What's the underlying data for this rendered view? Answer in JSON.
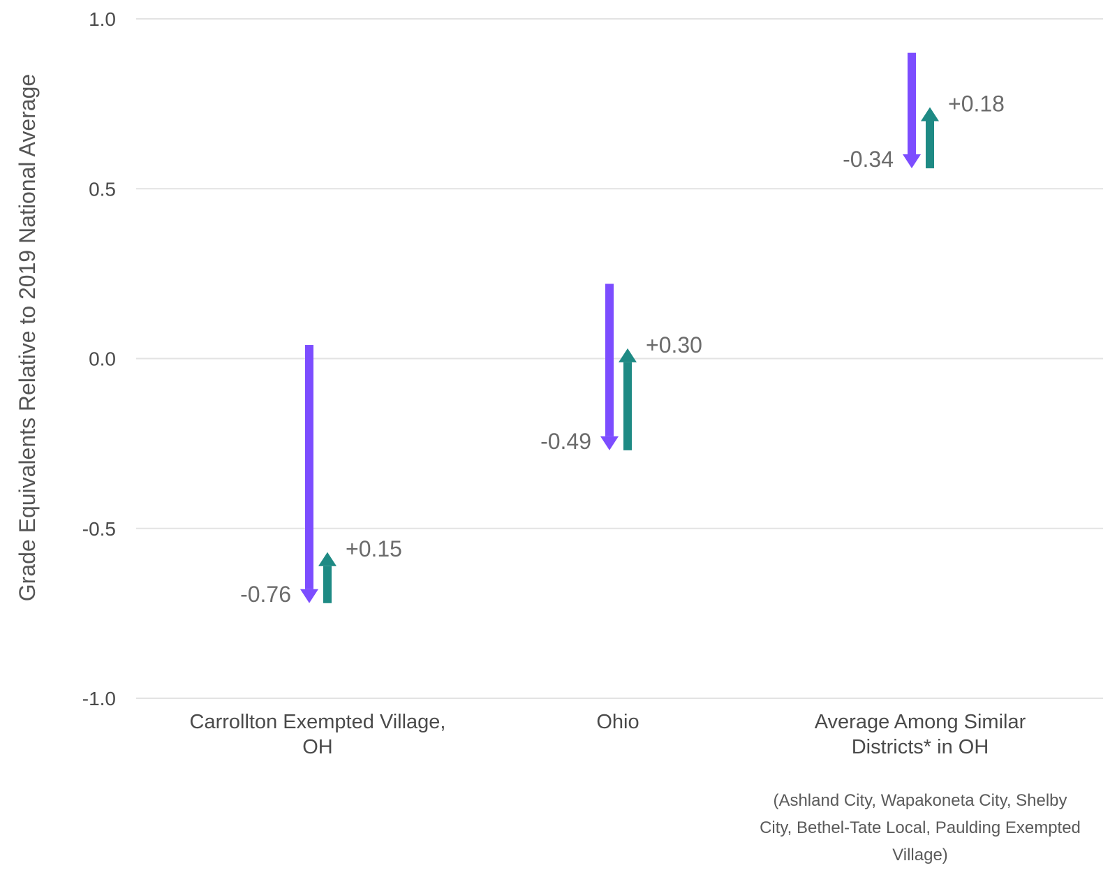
{
  "chart_data": {
    "type": "arrow",
    "ylabel": "Grade Equivalents Relative to 2019 National Average",
    "ylim": [
      -1.0,
      1.0
    ],
    "yticks": [
      "1.0",
      "0.5",
      "0.0",
      "-0.5",
      "-1.0"
    ],
    "grid": true,
    "colors": {
      "decline": "#7c4dff",
      "recovery": "#1e8a84",
      "grid": "#e3e3e3"
    },
    "categories": [
      {
        "label_lines": [
          "Carrollton Exempted Village,",
          "OH"
        ],
        "start": 0.04,
        "decline": -0.76,
        "decline_label": "-0.76",
        "recovery": 0.15,
        "recovery_label": "+0.15"
      },
      {
        "label_lines": [
          "Ohio"
        ],
        "start": 0.22,
        "decline": -0.49,
        "decline_label": "-0.49",
        "recovery": 0.3,
        "recovery_label": "+0.30"
      },
      {
        "label_lines": [
          "Average Among Similar",
          "Districts* in OH"
        ],
        "start": 0.9,
        "decline": -0.34,
        "decline_label": "-0.34",
        "recovery": 0.18,
        "recovery_label": "+0.18"
      }
    ],
    "footnote_lines": [
      "(Ashland City, Wapakoneta City, Shelby",
      "City, Bethel-Tate Local, Paulding Exempted",
      "Village)"
    ]
  }
}
